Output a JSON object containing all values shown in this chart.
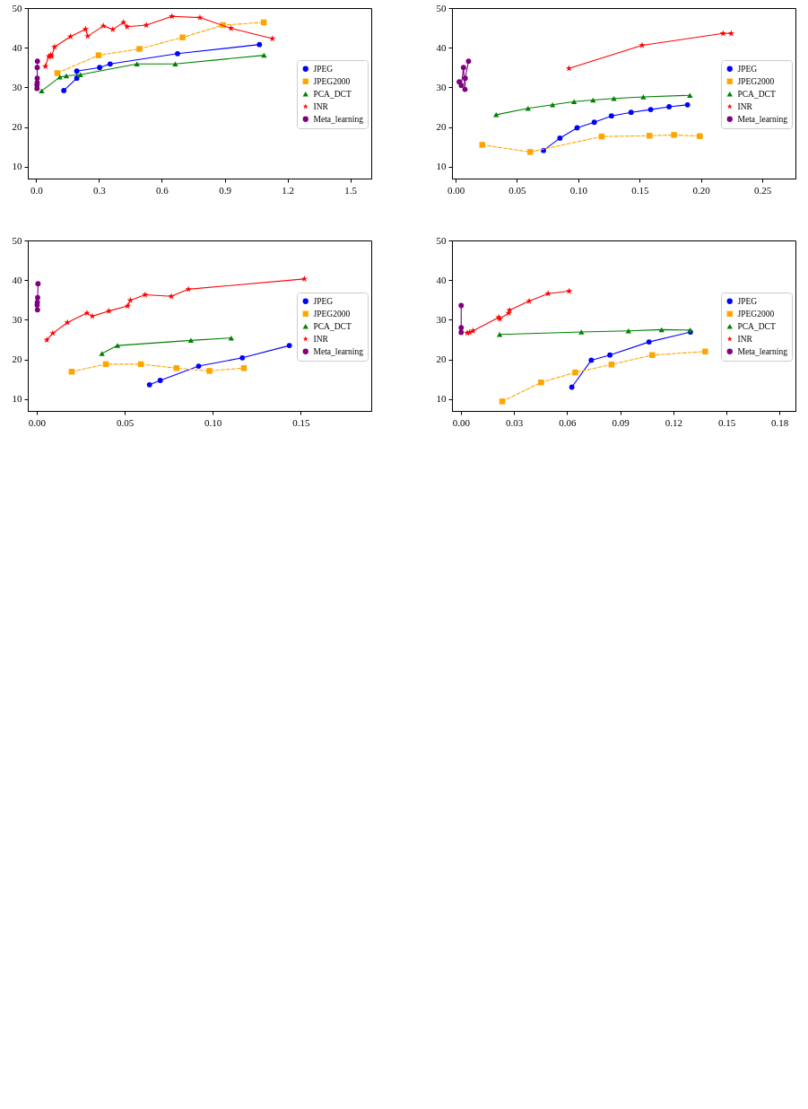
{
  "chart_data": [
    {
      "type": "line",
      "xlim": [
        -0.04,
        1.6
      ],
      "ylim": [
        7,
        50
      ],
      "xticks": [
        {
          "value": 0,
          "label": "0.0"
        },
        0.3,
        0.6,
        0.9,
        1.2,
        1.5
      ],
      "yticks": [
        10,
        20,
        30,
        40,
        50
      ],
      "grid": false,
      "legend": "right",
      "series": [
        {
          "name": "JPEG",
          "color": "#0000ff",
          "marker": "circle",
          "line_style": "solid",
          "x": [
            0.132,
            0.194,
            0.194,
            0.303,
            0.353,
            0.675,
            1.066
          ],
          "values": [
            29.2,
            32.3,
            34.1,
            35.0,
            35.9,
            38.5,
            40.8
          ]
        },
        {
          "name": "JPEG2000",
          "color": "#ffa500",
          "marker": "square",
          "line_style": "dashed",
          "x": [
            0.101,
            0.298,
            0.493,
            0.699,
            0.892,
            1.087
          ],
          "values": [
            33.6,
            38.1,
            39.7,
            42.6,
            45.7,
            46.4
          ]
        },
        {
          "name": "PCA_DCT",
          "color": "#008000",
          "marker": "triangle",
          "line_style": "solid",
          "x": [
            0.026,
            0.113,
            0.144,
            0.211,
            0.481,
            0.664,
            1.088
          ],
          "values": [
            29.1,
            32.6,
            32.9,
            33.2,
            35.9,
            35.9,
            38.1
          ]
        },
        {
          "name": "INR",
          "color": "#ff0000",
          "marker": "star",
          "line_style": "solid",
          "x": [
            0.044,
            0.06,
            0.07,
            0.074,
            0.088,
            0.164,
            0.236,
            0.246,
            0.321,
            0.366,
            0.417,
            0.434,
            0.526,
            0.648,
            0.782,
            0.93,
            1.128
          ],
          "values": [
            35.3,
            37.8,
            38.2,
            37.8,
            40.2,
            42.8,
            44.7,
            42.9,
            45.5,
            44.6,
            46.4,
            45.3,
            45.7,
            47.9,
            47.6,
            44.9,
            42.3
          ]
        },
        {
          "name": "Meta_learning",
          "color": "#800080",
          "marker": "circle",
          "line_style": "solid",
          "x": [
            0.004,
            0.004,
            0.005,
            0.005,
            0.005,
            0.006
          ],
          "values": [
            29.7,
            30.6,
            31.2,
            32.3,
            35.0,
            36.6
          ]
        }
      ]
    },
    {
      "type": "line",
      "xlim": [
        -0.003,
        0.277
      ],
      "ylim": [
        7,
        50
      ],
      "xticks": [
        {
          "value": 0,
          "label": "0.00"
        },
        0.05,
        {
          "value": 0.1,
          "label": "0.10"
        },
        0.15,
        {
          "value": 0.2,
          "label": "0.20"
        },
        0.25
      ],
      "yticks": [
        10,
        20,
        30,
        40,
        50
      ],
      "grid": false,
      "legend": "right",
      "series": [
        {
          "name": "JPEG",
          "color": "#0000ff",
          "marker": "circle",
          "line_style": "solid",
          "x": [
            0.0716,
            0.085,
            0.099,
            0.113,
            0.127,
            0.143,
            0.159,
            0.174,
            0.189
          ],
          "values": [
            14.1,
            17.2,
            19.8,
            21.2,
            22.8,
            23.7,
            24.4,
            25.1,
            25.6
          ]
        },
        {
          "name": "JPEG2000",
          "color": "#ffa500",
          "marker": "square",
          "line_style": "dashed",
          "x": [
            0.0217,
            0.0608,
            0.119,
            0.158,
            0.178,
            0.199
          ],
          "values": [
            15.5,
            13.7,
            17.6,
            17.8,
            18.0,
            17.7
          ]
        },
        {
          "name": "PCA_DCT",
          "color": "#008000",
          "marker": "triangle",
          "line_style": "solid",
          "x": [
            0.033,
            0.059,
            0.079,
            0.0965,
            0.112,
            0.129,
            0.153,
            0.191
          ],
          "values": [
            23.1,
            24.7,
            25.6,
            26.4,
            26.8,
            27.2,
            27.6,
            28.0
          ]
        },
        {
          "name": "INR",
          "color": "#ff0000",
          "marker": "star",
          "line_style": "solid",
          "x": [
            0.0924,
            0.152,
            0.218,
            0.2246
          ],
          "values": [
            34.8,
            40.6,
            43.6,
            43.6
          ]
        },
        {
          "name": "Meta_learning",
          "color": "#800080",
          "marker": "circle",
          "line_style": "solid",
          "x": [
            0.0029,
            0.0046,
            0.0064,
            0.0076,
            0.0078,
            0.0105
          ],
          "values": [
            31.4,
            30.5,
            35.0,
            29.5,
            32.3,
            36.6
          ]
        }
      ]
    },
    {
      "type": "line",
      "xlim": [
        -0.005,
        0.19
      ],
      "ylim": [
        7,
        50
      ],
      "xticks": [
        {
          "value": 0,
          "label": "0.00"
        },
        0.05,
        {
          "value": 0.1,
          "label": "0.10"
        },
        0.15
      ],
      "yticks": [
        10,
        20,
        30,
        40,
        50
      ],
      "grid": false,
      "legend": "right",
      "series": [
        {
          "name": "JPEG",
          "color": "#0000ff",
          "marker": "circle",
          "line_style": "solid",
          "x": [
            0.0641,
            0.0702,
            0.092,
            0.1168,
            0.1435
          ],
          "values": [
            13.6,
            14.7,
            18.3,
            20.4,
            23.5
          ]
        },
        {
          "name": "JPEG2000",
          "color": "#ffa500",
          "marker": "square",
          "line_style": "dashed",
          "x": [
            0.0199,
            0.0393,
            0.0592,
            0.0794,
            0.0981,
            0.1177
          ],
          "values": [
            16.9,
            18.8,
            18.8,
            17.8,
            17.1,
            17.8
          ]
        },
        {
          "name": "PCA_DCT",
          "color": "#008000",
          "marker": "triangle",
          "line_style": "solid",
          "x": [
            0.0371,
            0.0459,
            0.0876,
            0.1105
          ],
          "values": [
            21.5,
            23.5,
            24.8,
            25.4
          ]
        },
        {
          "name": "INR",
          "color": "#ff0000",
          "marker": "star",
          "line_style": "solid",
          "x": [
            0.0058,
            0.0092,
            0.0175,
            0.0286,
            0.0316,
            0.041,
            0.0517,
            0.0532,
            0.0616,
            0.0765,
            0.0862,
            0.152
          ],
          "values": [
            24.9,
            26.6,
            29.3,
            31.7,
            30.9,
            32.2,
            33.5,
            34.9,
            36.3,
            35.9,
            37.7,
            40.3
          ]
        },
        {
          "name": "Meta_learning",
          "color": "#800080",
          "marker": "circle",
          "line_style": "solid",
          "x": [
            0.0005,
            0.0003,
            0.0004,
            0.0006,
            0.0008
          ],
          "values": [
            32.5,
            33.7,
            34.4,
            35.6,
            39.1
          ]
        }
      ]
    },
    {
      "type": "line",
      "xlim": [
        -0.005,
        0.189
      ],
      "ylim": [
        7,
        50
      ],
      "xticks": [
        {
          "value": 0,
          "label": "0.00"
        },
        0.03,
        0.06,
        0.09,
        0.12,
        0.15,
        0.18
      ],
      "yticks": [
        10,
        20,
        30,
        40,
        50
      ],
      "grid": false,
      "legend": "right",
      "series": [
        {
          "name": "JPEG",
          "color": "#0000ff",
          "marker": "circle",
          "line_style": "solid",
          "x": [
            0.0627,
            0.0737,
            0.0842,
            0.1063,
            0.1297
          ],
          "values": [
            13.0,
            19.8,
            21.1,
            24.4,
            26.9
          ]
        },
        {
          "name": "JPEG2000",
          "color": "#ffa500",
          "marker": "square",
          "line_style": "dashed",
          "x": [
            0.0234,
            0.0453,
            0.0646,
            0.0851,
            0.1081,
            0.138
          ],
          "values": [
            9.4,
            14.2,
            16.7,
            18.7,
            21.1,
            22.0
          ]
        },
        {
          "name": "PCA_DCT",
          "color": "#008000",
          "marker": "triangle",
          "line_style": "solid",
          "x": [
            0.0219,
            0.0681,
            0.0947,
            0.1134,
            0.1295
          ],
          "values": [
            26.3,
            26.9,
            27.2,
            27.5,
            27.4
          ]
        },
        {
          "name": "INR",
          "color": "#ff0000",
          "marker": "star",
          "line_style": "solid",
          "x": [
            0.0036,
            0.0049,
            0.0069,
            0.0214,
            0.022,
            0.027,
            0.0275,
            0.0386,
            0.0493,
            0.0612
          ],
          "values": [
            26.7,
            26.8,
            27.2,
            30.6,
            30.2,
            31.7,
            32.4,
            34.7,
            36.6,
            37.2
          ]
        },
        {
          "name": "Meta_learning",
          "color": "#800080",
          "marker": "circle",
          "line_style": "solid",
          "x": [
            0.0002,
            0.0002,
            0.0002
          ],
          "values": [
            26.8,
            28.0,
            33.6
          ]
        }
      ]
    }
  ]
}
